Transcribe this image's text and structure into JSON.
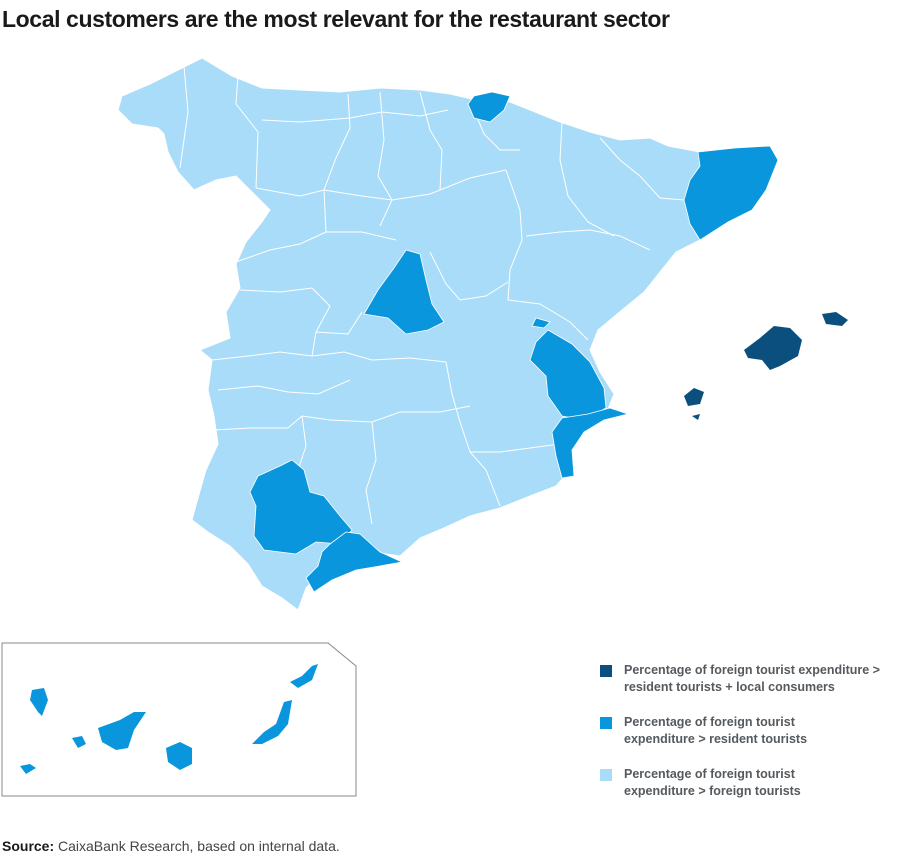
{
  "title": "Local customers are the most relevant for the restaurant sector",
  "colors": {
    "dark": "#0a4f7d",
    "medium": "#0a96dc",
    "light": "#a8dcf8",
    "border": "#ffffff"
  },
  "legend": [
    {
      "color": "#0a4f7d",
      "label_line1": "Percentage of foreign tourist expenditure >",
      "label_line2": "resident tourists + local consumers"
    },
    {
      "color": "#0a96dc",
      "label_line1": "Percentage of foreign tourist",
      "label_line2": "expenditure > resident tourists"
    },
    {
      "color": "#a8dcf8",
      "label_line1": "Percentage of foreign tourist",
      "label_line2": "expenditure > foreign tourists"
    }
  ],
  "source": {
    "label": "Source:",
    "text": " CaixaBank Research, based on internal data."
  }
}
